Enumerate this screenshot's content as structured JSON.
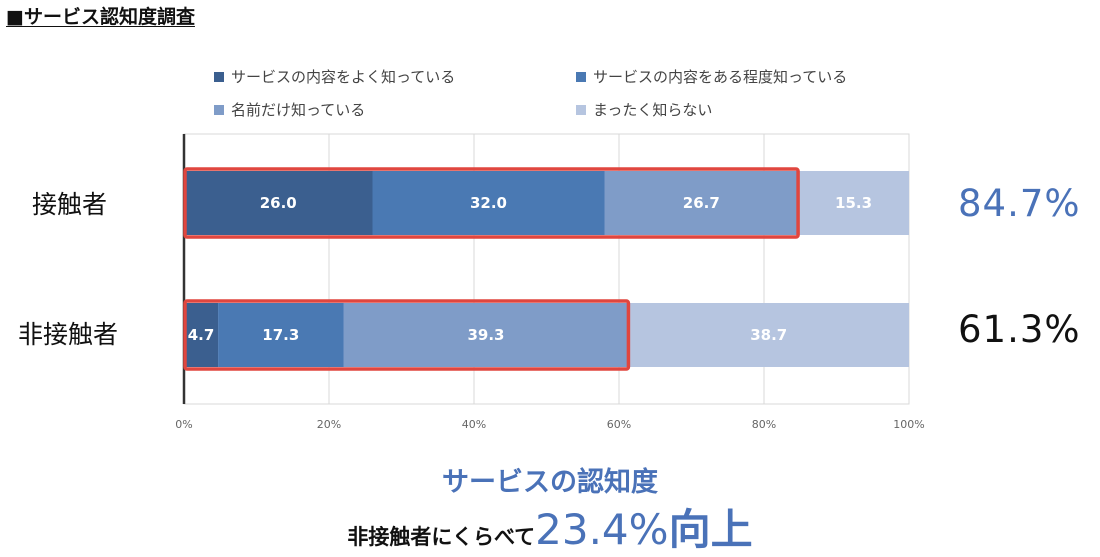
{
  "page": {
    "title": "■サービス認知度調査"
  },
  "colors": {
    "seg1": "#3b5f8f",
    "seg2": "#4a79b3",
    "seg3": "#7f9cc8",
    "seg4": "#b6c5e0",
    "highlight": "#e0463f",
    "accent": "#4a72b8",
    "black": "#111111"
  },
  "chart_data": {
    "type": "bar",
    "orientation": "horizontal",
    "stacked": true,
    "categories": [
      "接触者",
      "非接触者"
    ],
    "series": [
      {
        "name": "サービスの内容をよく知っている",
        "values": [
          26.0,
          4.7
        ],
        "labels": [
          "26.0",
          "4.7"
        ]
      },
      {
        "name": "サービスの内容をある程度知っている",
        "values": [
          32.0,
          17.3
        ],
        "labels": [
          "32.0",
          "17.3"
        ]
      },
      {
        "name": "名前だけ知っている",
        "values": [
          26.7,
          39.3
        ],
        "labels": [
          "26.7",
          "39.3"
        ]
      },
      {
        "name": "まったく知らない",
        "values": [
          15.3,
          38.7
        ],
        "labels": [
          "15.3",
          "38.7"
        ]
      }
    ],
    "xlim": [
      0,
      100
    ],
    "x_ticks": [
      0,
      20,
      40,
      60,
      80,
      100
    ],
    "x_tick_labels": [
      "0%",
      "20%",
      "40%",
      "60%",
      "80%",
      "100%"
    ],
    "grid": "vertical",
    "legend_position": "top",
    "highlight_totals": [
      84.7,
      61.3
    ],
    "right_labels": [
      "84.7%",
      "61.3%"
    ]
  },
  "summary": {
    "title": "サービスの認知度",
    "prefix": "非接触者にくらべて",
    "value": "23.4%",
    "suffix": "向上"
  }
}
